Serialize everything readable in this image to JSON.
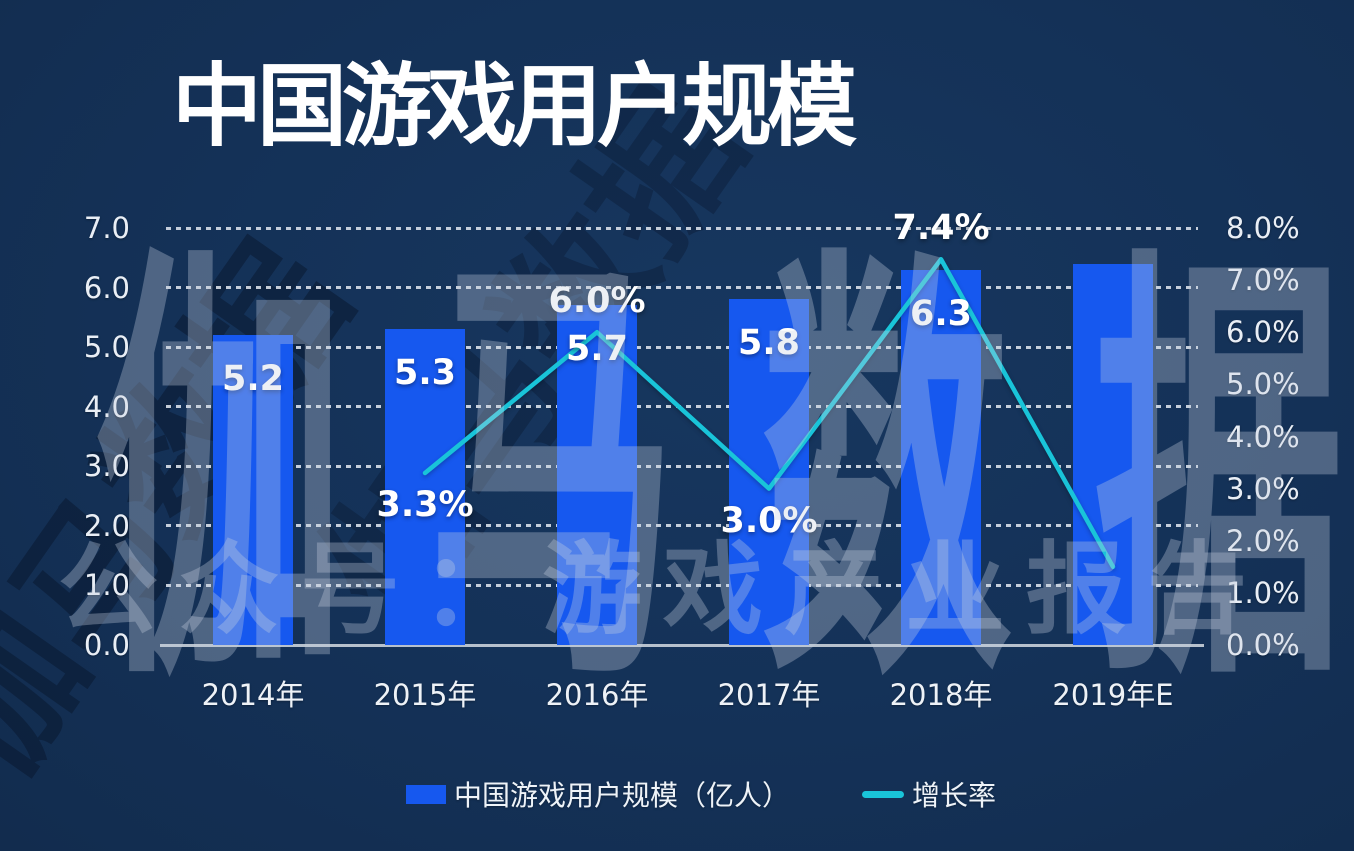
{
  "title": "中国游戏用户规模",
  "watermarks": {
    "main": "伽马数据",
    "secondary": "公众号：游戏产业报告",
    "corner": "伽马数据"
  },
  "legend": {
    "bar_label": "中国游戏用户规模（亿人）",
    "line_label": "增长率"
  },
  "colors": {
    "background": "#14325A",
    "bar": "#1658EF",
    "line": "#19C4D9",
    "grid": "#E9EEF5",
    "axis_line": "#B7C1CD",
    "label_text": "#FFFFFF",
    "watermark": "rgba(200,210,224,0.33)"
  },
  "chart_data": {
    "type": "bar+line combo",
    "categories": [
      "2014年",
      "2015年",
      "2016年",
      "2017年",
      "2018年",
      "2019年E"
    ],
    "series": [
      {
        "name": "中国游戏用户规模（亿人）",
        "type": "bar",
        "axis": "left",
        "values": [
          5.2,
          5.3,
          5.7,
          5.8,
          6.3,
          6.4
        ],
        "labels": [
          "5.2",
          "5.3",
          "5.7",
          "5.8",
          "6.3",
          ""
        ]
      },
      {
        "name": "增长率",
        "type": "line",
        "axis": "right",
        "values": [
          null,
          3.3,
          6.0,
          3.0,
          7.4,
          1.5
        ],
        "labels": [
          "",
          "3.3%",
          "6.0%",
          "3.0%",
          "7.4%",
          ""
        ],
        "label_side": [
          "",
          "below",
          "above",
          "below",
          "above",
          ""
        ]
      }
    ],
    "left_axis": {
      "ticks": [
        "0.0",
        "1.0",
        "2.0",
        "3.0",
        "4.0",
        "5.0",
        "6.0",
        "7.0"
      ],
      "min": 0,
      "max": 7
    },
    "right_axis": {
      "ticks": [
        "0.0%",
        "1.0%",
        "2.0%",
        "3.0%",
        "4.0%",
        "5.0%",
        "6.0%",
        "7.0%",
        "8.0%"
      ],
      "min": 0,
      "max": 8
    },
    "grid": "horizontal dashed, solid baseline",
    "legend_position": "bottom"
  }
}
